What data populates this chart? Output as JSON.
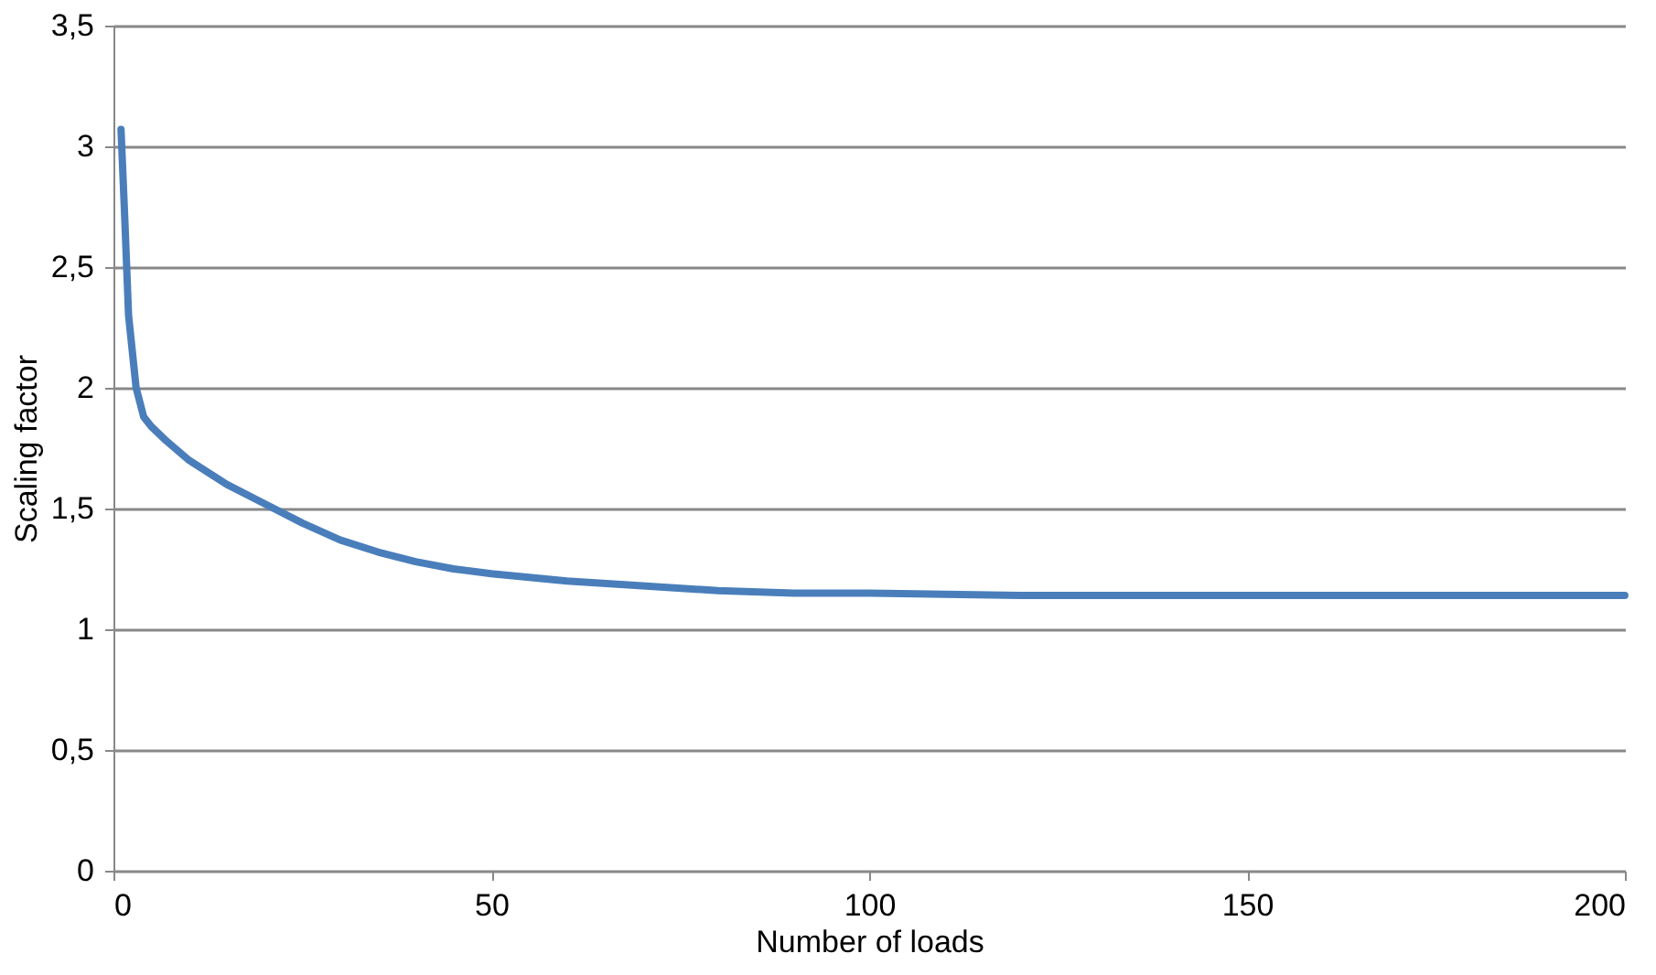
{
  "chart_data": {
    "type": "line",
    "xlabel": "Number of loads",
    "ylabel": "Scaling factor",
    "series": [
      {
        "color": "#4a7ebb",
        "x": [
          1,
          1.5,
          2,
          3,
          4,
          5,
          7,
          10,
          15,
          20,
          25,
          30,
          35,
          40,
          45,
          50,
          60,
          70,
          80,
          90,
          100,
          120,
          150,
          200
        ],
        "values": [
          3.07,
          2.7,
          2.3,
          2.0,
          1.88,
          1.84,
          1.78,
          1.7,
          1.6,
          1.52,
          1.44,
          1.37,
          1.32,
          1.28,
          1.25,
          1.23,
          1.2,
          1.18,
          1.16,
          1.15,
          1.15,
          1.14,
          1.14,
          1.14
        ]
      }
    ],
    "xlim": [
      0,
      200
    ],
    "xticks": [
      0,
      50,
      100,
      150,
      200
    ],
    "ylim": [
      0,
      3.5
    ],
    "yticks": [
      0,
      {
        "value": 0.5,
        "label": "0,5"
      },
      1,
      {
        "value": 1.5,
        "label": "1,5"
      },
      2,
      {
        "value": 2.5,
        "label": "2,5"
      },
      3,
      {
        "value": 3.5,
        "label": "3,5"
      }
    ],
    "grid": "y",
    "marker": "none",
    "line_style": "solid"
  }
}
